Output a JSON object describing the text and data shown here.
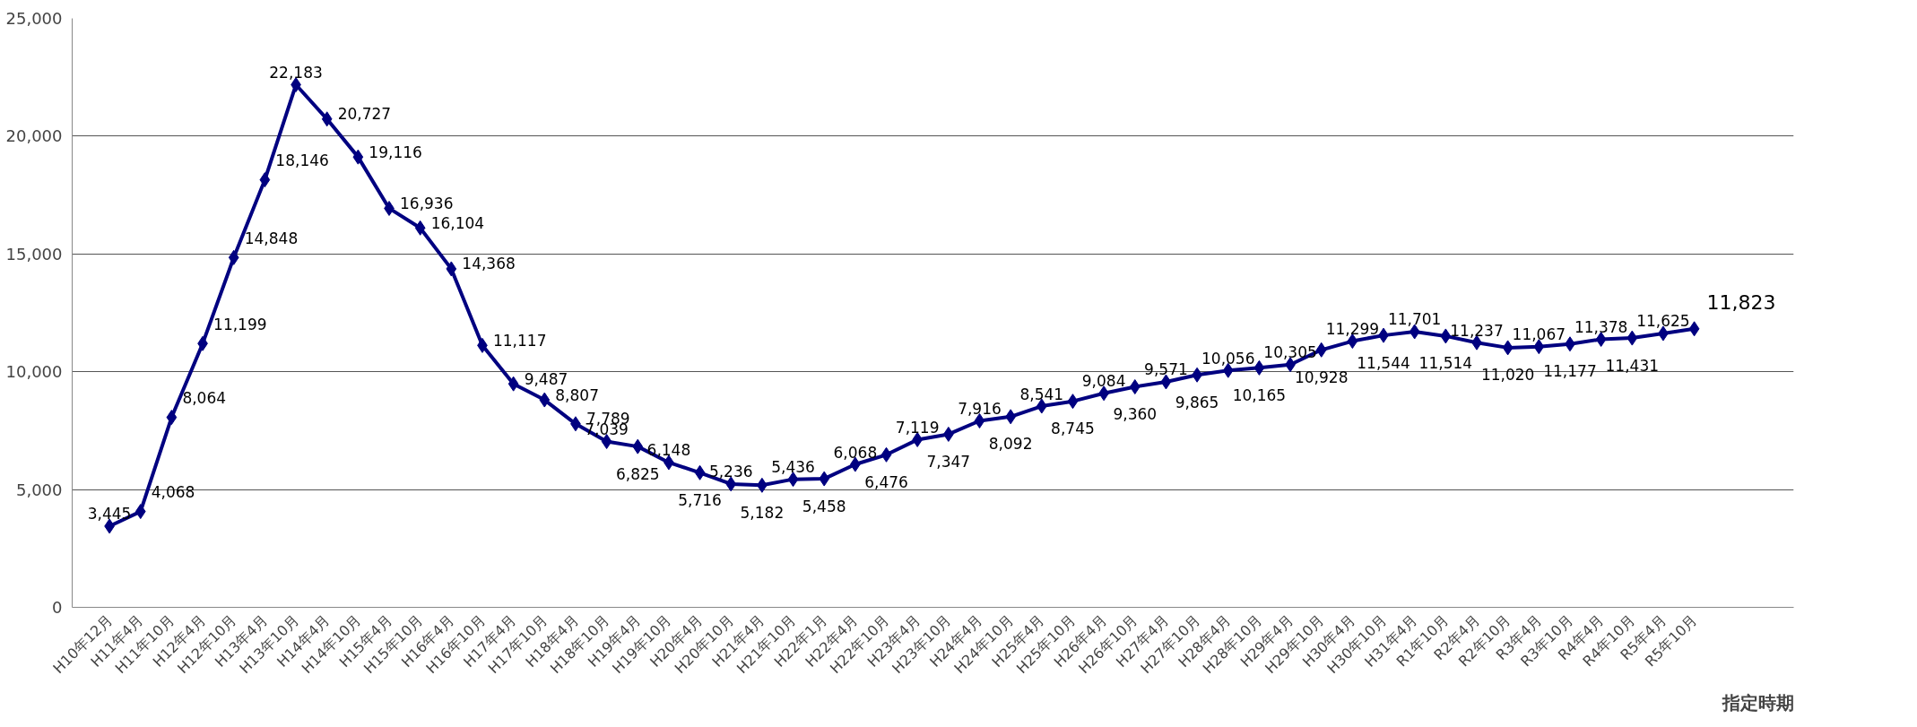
{
  "chart_data": {
    "type": "line",
    "xlabel": "指定時期",
    "categories": [
      "H10年12月",
      "H11年4月",
      "H11年10月",
      "H12年4月",
      "H12年10月",
      "H13年4月",
      "H13年10月",
      "H14年4月",
      "H14年10月",
      "H15年4月",
      "H15年10月",
      "H16年4月",
      "H16年10月",
      "H17年4月",
      "H17年10月",
      "H18年4月",
      "H18年10月",
      "H19年4月",
      "H19年10月",
      "H20年4月",
      "H20年10月",
      "H21年4月",
      "H21年10月",
      "H22年1月",
      "H22年4月",
      "H22年10月",
      "H23年4月",
      "H23年10月",
      "H24年4月",
      "H24年10月",
      "H25年4月",
      "H25年10月",
      "H26年4月",
      "H26年10月",
      "H27年4月",
      "H27年10月",
      "H28年4月",
      "H28年10月",
      "H29年4月",
      "H29年10月",
      "H30年4月",
      "H30年10月",
      "H31年4月",
      "R1年10月",
      "R2年4月",
      "R2年10月",
      "R3年4月",
      "R3年10月",
      "R4年4月",
      "R4年10月",
      "R5年4月",
      "R5年10月"
    ],
    "series": [
      {
        "color": "#000080",
        "values": [
          3445,
          4068,
          8064,
          11199,
          14848,
          18146,
          22183,
          20727,
          19116,
          16936,
          16104,
          14368,
          11117,
          9487,
          8807,
          7789,
          7039,
          6825,
          6148,
          5716,
          5236,
          5182,
          5436,
          5458,
          6068,
          6476,
          7119,
          7347,
          7916,
          8092,
          8541,
          8745,
          9084,
          9360,
          9571,
          9865,
          10056,
          10165,
          10305,
          10928,
          11299,
          11544,
          11701,
          11514,
          11237,
          11020,
          11067,
          11177,
          11378,
          11431,
          11625,
          11823
        ],
        "value_labels": [
          "3,445",
          "4,068",
          "8,064",
          "11,199",
          "14,848",
          "18,146",
          "22,183",
          "20,727",
          "19,116",
          "16,936",
          "16,104",
          "14,368",
          "11,117",
          "9,487",
          "8,807",
          "7,789",
          "7,039",
          "6,825",
          "6,148",
          "5,716",
          "5,236",
          "5,182",
          "5,436",
          "5,458",
          "6,068",
          "6,476",
          "7,119",
          "7,347",
          "7,916",
          "8,092",
          "8,541",
          "8,745",
          "9,084",
          "9,360",
          "9,571",
          "9,865",
          "10,056",
          "10,165",
          "10,305",
          "10,928",
          "11,299",
          "11,544",
          "11,701",
          "11,514",
          "11,237",
          "11,020",
          "11,067",
          "11,177",
          "11,378",
          "11,431",
          "11,625",
          "11,823"
        ]
      }
    ],
    "ylim": [
      0,
      25000
    ],
    "yticks": [
      {
        "value": 0,
        "label": "0"
      },
      {
        "value": 5000,
        "label": "5,000"
      },
      {
        "value": 10000,
        "label": "10,000"
      },
      {
        "value": 15000,
        "label": "15,000"
      },
      {
        "value": 20000,
        "label": "20,000"
      },
      {
        "value": 25000,
        "label": "25,000"
      }
    ],
    "grid": "y",
    "marker": "diamond",
    "line_style": "solid"
  }
}
